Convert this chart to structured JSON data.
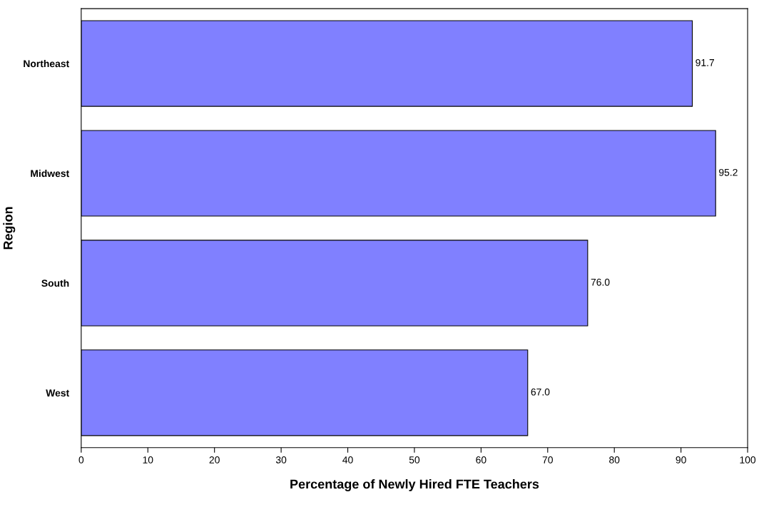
{
  "chart_data": {
    "type": "bar",
    "orientation": "horizontal",
    "xlabel": "Percentage of Newly Hired FTE Teachers",
    "ylabel": "Region",
    "categories": [
      "Northeast",
      "Midwest",
      "South",
      "West"
    ],
    "values": [
      91.7,
      95.2,
      76.0,
      67.0
    ],
    "color": "#8080ff",
    "xlim": [
      0,
      100
    ],
    "xticks": [
      0,
      10,
      20,
      30,
      40,
      50,
      60,
      70,
      80,
      90,
      100
    ],
    "value_labels": [
      "91.7",
      "95.2",
      "76.0",
      "67.0"
    ],
    "grid": false,
    "legend": false
  }
}
